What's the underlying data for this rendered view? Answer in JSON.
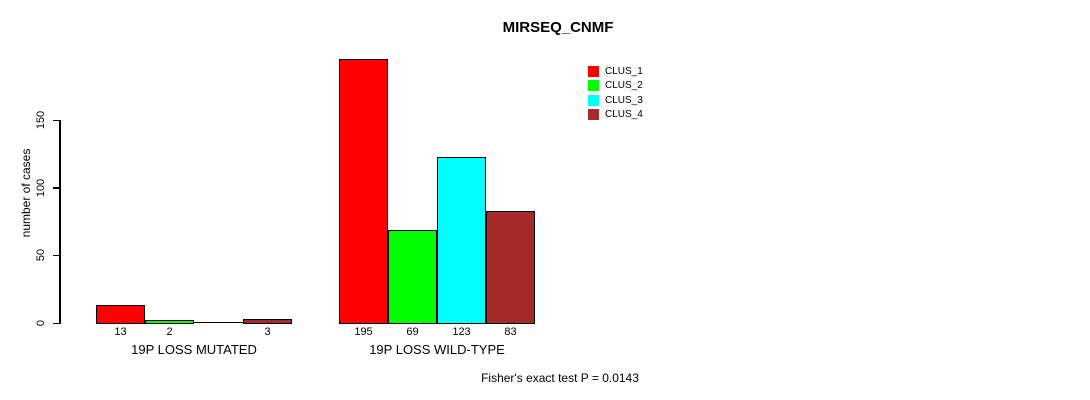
{
  "chart_data": {
    "type": "bar",
    "title": "MIRSEQ_CNMF",
    "ylabel": "number of cases",
    "ylim": [
      0,
      150
    ],
    "yticks": [
      0,
      50,
      100,
      150
    ],
    "grid": false,
    "legend_position": "top-right",
    "series": [
      {
        "name": "CLUS_1",
        "color": "#FF0000"
      },
      {
        "name": "CLUS_2",
        "color": "#00FF00"
      },
      {
        "name": "CLUS_3",
        "color": "#00FFFF"
      },
      {
        "name": "CLUS_4",
        "color": "#A52A2A"
      }
    ],
    "groups": [
      {
        "label": "19P LOSS MUTATED",
        "values": [
          13,
          2,
          0,
          3
        ]
      },
      {
        "label": "19P LOSS WILD-TYPE",
        "values": [
          195,
          69,
          123,
          83
        ]
      }
    ],
    "bar_value_labels_shown": true,
    "zero_value_label_hidden": true,
    "annotation": "Fisher's exact test P = 0.0143"
  },
  "colors": {
    "axis": "#000000",
    "text": "#000000",
    "background": "#FFFFFF",
    "bar_border": "#000000"
  }
}
